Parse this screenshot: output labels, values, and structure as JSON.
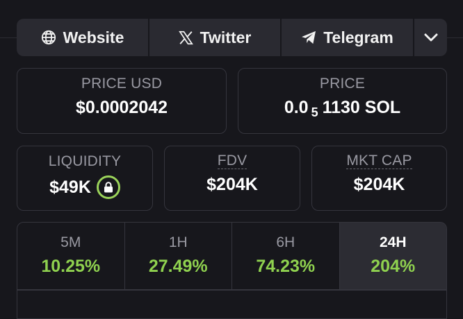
{
  "links": {
    "website": {
      "label": "Website",
      "icon": "globe-icon"
    },
    "twitter": {
      "label": "Twitter",
      "icon": "x-logo-icon"
    },
    "telegram": {
      "label": "Telegram",
      "icon": "telegram-icon"
    },
    "more": {
      "icon": "chevron-down-icon"
    }
  },
  "stats": {
    "price_usd": {
      "label": "PRICE USD",
      "value": "$0.0002042"
    },
    "price_native": {
      "label": "PRICE",
      "prefix": "0.0",
      "zeros": "5",
      "suffix": "1130 SOL"
    },
    "liquidity": {
      "label": "LIQUIDITY",
      "value": "$49K",
      "icon": "lock-icon"
    },
    "fdv": {
      "label": "FDV",
      "value": "$204K"
    },
    "mkt_cap": {
      "label": "MKT CAP",
      "value": "$204K"
    }
  },
  "timeframes": [
    {
      "label": "5M",
      "change": "10.25%",
      "active": false
    },
    {
      "label": "1H",
      "change": "27.49%",
      "active": false
    },
    {
      "label": "6H",
      "change": "74.23%",
      "active": false
    },
    {
      "label": "24H",
      "change": "204%",
      "active": true
    }
  ],
  "colors": {
    "background": "#17171c",
    "card_border": "#35353d",
    "positive": "#8fd14f",
    "lock_ring": "#9bd35a"
  }
}
